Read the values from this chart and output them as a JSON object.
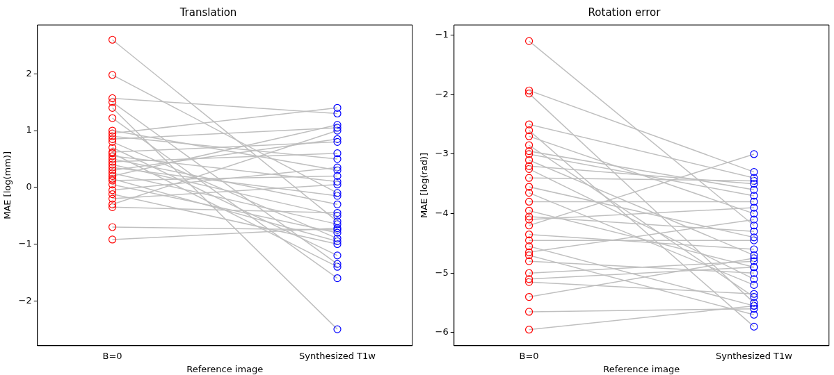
{
  "chart_data": [
    {
      "type": "line",
      "title": "Translation",
      "xlabel": "Reference image",
      "ylabel": "MAE [log(mm)]",
      "categories": [
        "B=0",
        "Synthesized T1w"
      ],
      "ylim": [
        -2.79,
        2.86
      ],
      "yticks": [
        -2,
        -1,
        0,
        1,
        2
      ],
      "grid": false,
      "legend": false,
      "marker": "circle",
      "line_style": "solid",
      "series": [
        {
          "color": "#bfbfbf",
          "colors": [
            "#ff0000",
            "#0000ff"
          ],
          "values": [
            2.6,
            -0.6
          ]
        },
        {
          "color": "#bfbfbf",
          "colors": [
            "#ff0000",
            "#0000ff"
          ],
          "values": [
            1.98,
            -0.1
          ]
        },
        {
          "color": "#bfbfbf",
          "colors": [
            "#ff0000",
            "#0000ff"
          ],
          "values": [
            1.57,
            1.3
          ]
        },
        {
          "color": "#bfbfbf",
          "colors": [
            "#ff0000",
            "#0000ff"
          ],
          "values": [
            1.5,
            -1.35
          ]
        },
        {
          "color": "#bfbfbf",
          "colors": [
            "#ff0000",
            "#0000ff"
          ],
          "values": [
            1.4,
            -2.5
          ]
        },
        {
          "color": "#bfbfbf",
          "colors": [
            "#ff0000",
            "#0000ff"
          ],
          "values": [
            1.22,
            -1.6
          ]
        },
        {
          "color": "#bfbfbf",
          "colors": [
            "#ff0000",
            "#0000ff"
          ],
          "values": [
            1.0,
            0.3
          ]
        },
        {
          "color": "#bfbfbf",
          "colors": [
            "#ff0000",
            "#0000ff"
          ],
          "values": [
            0.95,
            1.4
          ]
        },
        {
          "color": "#bfbfbf",
          "colors": [
            "#ff0000",
            "#0000ff"
          ],
          "values": [
            0.9,
            0.5
          ]
        },
        {
          "color": "#bfbfbf",
          "colors": [
            "#ff0000",
            "#0000ff"
          ],
          "values": [
            0.85,
            1.05
          ]
        },
        {
          "color": "#bfbfbf",
          "colors": [
            "#ff0000",
            "#0000ff"
          ],
          "values": [
            0.8,
            -0.9
          ]
        },
        {
          "color": "#bfbfbf",
          "colors": [
            "#ff0000",
            "#0000ff"
          ],
          "values": [
            0.7,
            -1.2
          ]
        },
        {
          "color": "#bfbfbf",
          "colors": [
            "#ff0000",
            "#0000ff"
          ],
          "values": [
            0.62,
            0.8
          ]
        },
        {
          "color": "#bfbfbf",
          "colors": [
            "#ff0000",
            "#0000ff"
          ],
          "values": [
            0.6,
            -1.4
          ]
        },
        {
          "color": "#bfbfbf",
          "colors": [
            "#ff0000",
            "#0000ff"
          ],
          "values": [
            0.55,
            0.1
          ]
        },
        {
          "color": "#bfbfbf",
          "colors": [
            "#ff0000",
            "#0000ff"
          ],
          "values": [
            0.5,
            -0.3
          ]
        },
        {
          "color": "#bfbfbf",
          "colors": [
            "#ff0000",
            "#0000ff"
          ],
          "values": [
            0.45,
            0.6
          ]
        },
        {
          "color": "#bfbfbf",
          "colors": [
            "#ff0000",
            "#0000ff"
          ],
          "values": [
            0.4,
            -0.5
          ]
        },
        {
          "color": "#bfbfbf",
          "colors": [
            "#ff0000",
            "#0000ff"
          ],
          "values": [
            0.35,
            -0.15
          ]
        },
        {
          "color": "#bfbfbf",
          "colors": [
            "#ff0000",
            "#0000ff"
          ],
          "values": [
            0.3,
            0.85
          ]
        },
        {
          "color": "#bfbfbf",
          "colors": [
            "#ff0000",
            "#0000ff"
          ],
          "values": [
            0.25,
            -0.65
          ]
        },
        {
          "color": "#bfbfbf",
          "colors": [
            "#ff0000",
            "#0000ff"
          ],
          "values": [
            0.2,
            1.1
          ]
        },
        {
          "color": "#bfbfbf",
          "colors": [
            "#ff0000",
            "#0000ff"
          ],
          "values": [
            0.15,
            -0.95
          ]
        },
        {
          "color": "#bfbfbf",
          "colors": [
            "#ff0000",
            "#0000ff"
          ],
          "values": [
            0.12,
            0.2
          ]
        },
        {
          "color": "#bfbfbf",
          "colors": [
            "#ff0000",
            "#0000ff"
          ],
          "values": [
            0.05,
            -0.8
          ]
        },
        {
          "color": "#bfbfbf",
          "colors": [
            "#ff0000",
            "#0000ff"
          ],
          "values": [
            -0.05,
            0.35
          ]
        },
        {
          "color": "#bfbfbf",
          "colors": [
            "#ff0000",
            "#0000ff"
          ],
          "values": [
            -0.12,
            -1.0
          ]
        },
        {
          "color": "#bfbfbf",
          "colors": [
            "#ff0000",
            "#0000ff"
          ],
          "values": [
            -0.2,
            0.05
          ]
        },
        {
          "color": "#bfbfbf",
          "colors": [
            "#ff0000",
            "#0000ff"
          ],
          "values": [
            -0.3,
            1.0
          ]
        },
        {
          "color": "#bfbfbf",
          "colors": [
            "#ff0000",
            "#0000ff"
          ],
          "values": [
            -0.35,
            -0.45
          ]
        },
        {
          "color": "#bfbfbf",
          "colors": [
            "#ff0000",
            "#0000ff"
          ],
          "values": [
            -0.7,
            -0.75
          ]
        },
        {
          "color": "#bfbfbf",
          "colors": [
            "#ff0000",
            "#0000ff"
          ],
          "values": [
            -0.92,
            -0.72
          ]
        }
      ]
    },
    {
      "type": "line",
      "title": "Rotation error",
      "xlabel": "Reference image",
      "ylabel": "MAE [log(rad)]",
      "categories": [
        "B=0",
        "Synthesized T1w"
      ],
      "ylim": [
        -6.22,
        -0.83
      ],
      "yticks": [
        -6,
        -5,
        -4,
        -3,
        -2,
        -1
      ],
      "grid": false,
      "legend": false,
      "marker": "circle",
      "line_style": "solid",
      "series": [
        {
          "color": "#bfbfbf",
          "colors": [
            "#ff0000",
            "#0000ff"
          ],
          "values": [
            -1.1,
            -4.2
          ]
        },
        {
          "color": "#bfbfbf",
          "colors": [
            "#ff0000",
            "#0000ff"
          ],
          "values": [
            -1.93,
            -3.3
          ]
        },
        {
          "color": "#bfbfbf",
          "colors": [
            "#ff0000",
            "#0000ff"
          ],
          "values": [
            -1.98,
            -5.5
          ]
        },
        {
          "color": "#bfbfbf",
          "colors": [
            "#ff0000",
            "#0000ff"
          ],
          "values": [
            -2.5,
            -3.4
          ]
        },
        {
          "color": "#bfbfbf",
          "colors": [
            "#ff0000",
            "#0000ff"
          ],
          "values": [
            -2.6,
            -5.9
          ]
        },
        {
          "color": "#bfbfbf",
          "colors": [
            "#ff0000",
            "#0000ff"
          ],
          "values": [
            -2.7,
            -4.0
          ]
        },
        {
          "color": "#bfbfbf",
          "colors": [
            "#ff0000",
            "#0000ff"
          ],
          "values": [
            -2.85,
            -5.4
          ]
        },
        {
          "color": "#bfbfbf",
          "colors": [
            "#ff0000",
            "#0000ff"
          ],
          "values": [
            -2.95,
            -3.6
          ]
        },
        {
          "color": "#bfbfbf",
          "colors": [
            "#ff0000",
            "#0000ff"
          ],
          "values": [
            -3.0,
            -3.7
          ]
        },
        {
          "color": "#bfbfbf",
          "colors": [
            "#ff0000",
            "#0000ff"
          ],
          "values": [
            -3.1,
            -4.7
          ]
        },
        {
          "color": "#bfbfbf",
          "colors": [
            "#ff0000",
            "#0000ff"
          ],
          "values": [
            -3.2,
            -3.5
          ]
        },
        {
          "color": "#bfbfbf",
          "colors": [
            "#ff0000",
            "#0000ff"
          ],
          "values": [
            -3.25,
            -5.1
          ]
        },
        {
          "color": "#bfbfbf",
          "colors": [
            "#ff0000",
            "#0000ff"
          ],
          "values": [
            -3.4,
            -3.45
          ]
        },
        {
          "color": "#bfbfbf",
          "colors": [
            "#ff0000",
            "#0000ff"
          ],
          "values": [
            -3.55,
            -4.4
          ]
        },
        {
          "color": "#bfbfbf",
          "colors": [
            "#ff0000",
            "#0000ff"
          ],
          "values": [
            -3.65,
            -5.2
          ]
        },
        {
          "color": "#bfbfbf",
          "colors": [
            "#ff0000",
            "#0000ff"
          ],
          "values": [
            -3.8,
            -3.8
          ]
        },
        {
          "color": "#bfbfbf",
          "colors": [
            "#ff0000",
            "#0000ff"
          ],
          "values": [
            -3.95,
            -4.9
          ]
        },
        {
          "color": "#bfbfbf",
          "colors": [
            "#ff0000",
            "#0000ff"
          ],
          "values": [
            -4.05,
            -4.3
          ]
        },
        {
          "color": "#bfbfbf",
          "colors": [
            "#ff0000",
            "#0000ff"
          ],
          "values": [
            -4.1,
            -3.9
          ]
        },
        {
          "color": "#bfbfbf",
          "colors": [
            "#ff0000",
            "#0000ff"
          ],
          "values": [
            -4.2,
            -3.0
          ]
        },
        {
          "color": "#bfbfbf",
          "colors": [
            "#ff0000",
            "#0000ff"
          ],
          "values": [
            -4.35,
            -4.6
          ]
        },
        {
          "color": "#bfbfbf",
          "colors": [
            "#ff0000",
            "#0000ff"
          ],
          "values": [
            -4.45,
            -4.45
          ]
        },
        {
          "color": "#bfbfbf",
          "colors": [
            "#ff0000",
            "#0000ff"
          ],
          "values": [
            -4.55,
            -5.55
          ]
        },
        {
          "color": "#bfbfbf",
          "colors": [
            "#ff0000",
            "#0000ff"
          ],
          "values": [
            -4.65,
            -4.1
          ]
        },
        {
          "color": "#bfbfbf",
          "colors": [
            "#ff0000",
            "#0000ff"
          ],
          "values": [
            -4.7,
            -5.7
          ]
        },
        {
          "color": "#bfbfbf",
          "colors": [
            "#ff0000",
            "#0000ff"
          ],
          "values": [
            -4.8,
            -5.0
          ]
        },
        {
          "color": "#bfbfbf",
          "colors": [
            "#ff0000",
            "#0000ff"
          ],
          "values": [
            -5.0,
            -4.8
          ]
        },
        {
          "color": "#bfbfbf",
          "colors": [
            "#ff0000",
            "#0000ff"
          ],
          "values": [
            -5.1,
            -4.9
          ]
        },
        {
          "color": "#bfbfbf",
          "colors": [
            "#ff0000",
            "#0000ff"
          ],
          "values": [
            -5.15,
            -5.35
          ]
        },
        {
          "color": "#bfbfbf",
          "colors": [
            "#ff0000",
            "#0000ff"
          ],
          "values": [
            -5.4,
            -4.75
          ]
        },
        {
          "color": "#bfbfbf",
          "colors": [
            "#ff0000",
            "#0000ff"
          ],
          "values": [
            -5.65,
            -5.6
          ]
        },
        {
          "color": "#bfbfbf",
          "colors": [
            "#ff0000",
            "#0000ff"
          ],
          "values": [
            -5.95,
            -5.55
          ]
        }
      ]
    }
  ]
}
